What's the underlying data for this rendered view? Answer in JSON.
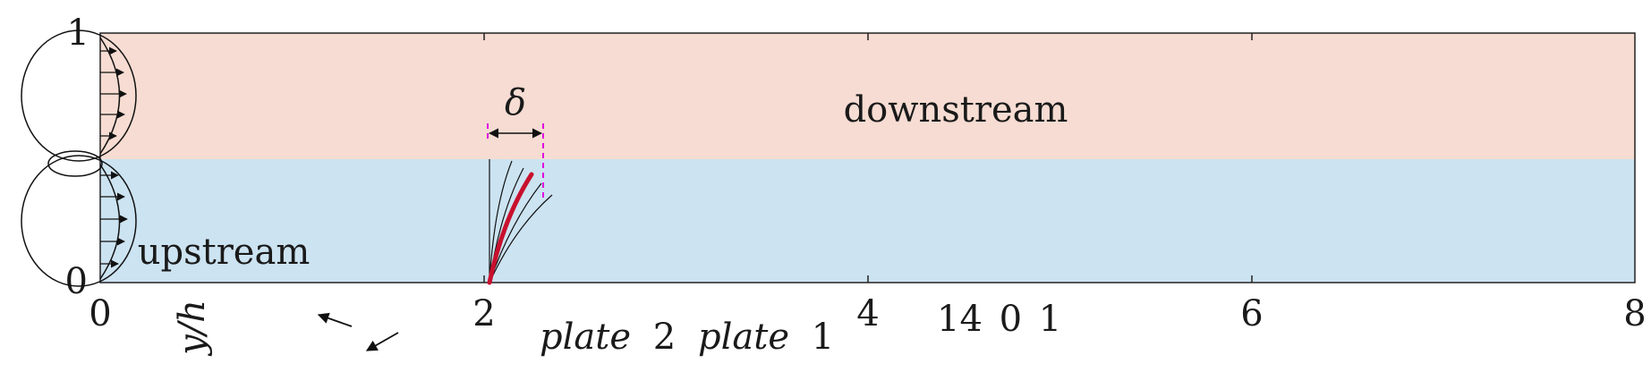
{
  "colors": {
    "downstream_region": "#f6dcd2",
    "upstream_region": "#cce3f1",
    "plate_highlight": "#c8102e",
    "delta_marker": "#e000e0",
    "lines": "#111111"
  },
  "axis": {
    "x_ticks": [
      "0",
      "2",
      "4",
      "6",
      "8"
    ],
    "y_ticks": [
      "0",
      "1"
    ],
    "y_label": "y/h"
  },
  "regions": {
    "downstream": "downstream",
    "upstream": "upstream"
  },
  "annotations": {
    "delta": "δ",
    "plate2_word": "plate",
    "plate2_num": "2",
    "plate1_word": "plate",
    "plate1_num": "1",
    "stray_numbers": "14 0 1"
  },
  "icons": [
    "inflow-arrow-icon",
    "direction-arrow-icon"
  ]
}
